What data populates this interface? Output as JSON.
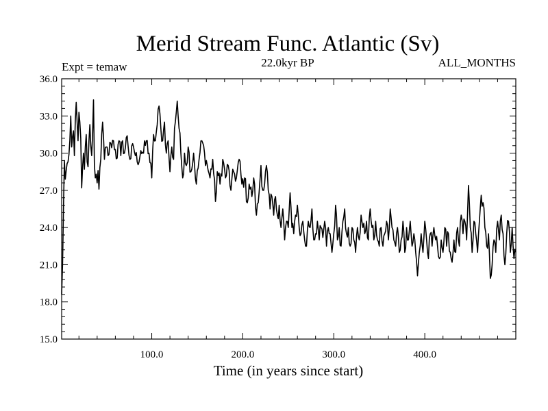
{
  "chart_data": {
    "type": "line",
    "title": "Merid Stream Func. Atlantic (Sv)",
    "subtitle_left": "Expt = temaw",
    "subtitle_center": "22.0kyr BP",
    "subtitle_right": "ALL_MONTHS",
    "xlabel": "Time (in years since start)",
    "ylabel": "",
    "xlim": [
      1,
      500
    ],
    "ylim": [
      15.0,
      36.0
    ],
    "x_ticks": [
      100,
      200,
      300,
      400
    ],
    "x_tick_labels": [
      "100.0",
      "200.0",
      "300.0",
      "400.0"
    ],
    "y_ticks": [
      15,
      18,
      21,
      24,
      27,
      30,
      33,
      36
    ],
    "y_tick_labels": [
      "15.0",
      "18.0",
      "21.0",
      "24.0",
      "27.0",
      "30.0",
      "33.0",
      "36.0"
    ],
    "x_start": 1,
    "x_step": 1,
    "key_points": [
      [
        1,
        18.6
      ],
      [
        2,
        21.0
      ],
      [
        3,
        25.5
      ],
      [
        4,
        29.4
      ],
      [
        5,
        27.9
      ],
      [
        6,
        28.6
      ],
      [
        8,
        29.3
      ],
      [
        10,
        31.0
      ],
      [
        11,
        33.0
      ],
      [
        12,
        30.5
      ],
      [
        14,
        31.8
      ],
      [
        15,
        29.8
      ],
      [
        17,
        34.1
      ],
      [
        18,
        32.5
      ],
      [
        19,
        31.0
      ],
      [
        20,
        33.3
      ],
      [
        22,
        31.2
      ],
      [
        23,
        27.2
      ],
      [
        25,
        30.0
      ],
      [
        26,
        28.7
      ],
      [
        27,
        30.5
      ],
      [
        28,
        31.5
      ],
      [
        29,
        29.3
      ],
      [
        30,
        28.9
      ],
      [
        31,
        31.0
      ],
      [
        32,
        32.3
      ],
      [
        34,
        29.8
      ],
      [
        35,
        31.5
      ],
      [
        36,
        34.3
      ],
      [
        37,
        29.0
      ],
      [
        38,
        28.0
      ],
      [
        39,
        28.3
      ],
      [
        40,
        27.6
      ],
      [
        41,
        28.6
      ],
      [
        42,
        27.1
      ],
      [
        44,
        29.5
      ],
      [
        45,
        31.5
      ],
      [
        46,
        32.5
      ],
      [
        48,
        29.5
      ],
      [
        50,
        30.5
      ],
      [
        52,
        29.8
      ],
      [
        55,
        30.8
      ],
      [
        58,
        31.0
      ],
      [
        60,
        30.3
      ],
      [
        62,
        29.6
      ],
      [
        64,
        31.0
      ],
      [
        66,
        29.8
      ],
      [
        68,
        31.0
      ],
      [
        70,
        30.0
      ],
      [
        73,
        31.4
      ],
      [
        76,
        29.5
      ],
      [
        80,
        30.5
      ],
      [
        84,
        29.3
      ],
      [
        88,
        30.2
      ],
      [
        91,
        30.0
      ],
      [
        94,
        31.0
      ],
      [
        97,
        30.0
      ],
      [
        100,
        28.0
      ],
      [
        102,
        31.5
      ],
      [
        104,
        31.0
      ],
      [
        106,
        32.3
      ],
      [
        108,
        33.8
      ],
      [
        110,
        32.0
      ],
      [
        112,
        31.0
      ],
      [
        114,
        32.5
      ],
      [
        116,
        30.0
      ],
      [
        118,
        31.0
      ],
      [
        120,
        28.5
      ],
      [
        122,
        30.5
      ],
      [
        124,
        29.5
      ],
      [
        125,
        32.0
      ],
      [
        128,
        34.2
      ],
      [
        130,
        32.0
      ],
      [
        132,
        30.0
      ],
      [
        134,
        28.0
      ],
      [
        136,
        30.0
      ],
      [
        138,
        29.0
      ],
      [
        140,
        30.5
      ],
      [
        143,
        28.5
      ],
      [
        146,
        30.0
      ],
      [
        149,
        27.5
      ],
      [
        152,
        29.5
      ],
      [
        155,
        31.0
      ],
      [
        158,
        30.0
      ],
      [
        161,
        29.0
      ],
      [
        164,
        28.0
      ],
      [
        167,
        29.5
      ],
      [
        170,
        26.1
      ],
      [
        172,
        28.5
      ],
      [
        175,
        27.5
      ],
      [
        178,
        29.5
      ],
      [
        181,
        28.0
      ],
      [
        184,
        29.0
      ],
      [
        187,
        27.0
      ],
      [
        190,
        28.5
      ],
      [
        193,
        28.0
      ],
      [
        196,
        29.5
      ],
      [
        199,
        27.5
      ],
      [
        202,
        28.0
      ],
      [
        205,
        26.0
      ],
      [
        207,
        27.5
      ],
      [
        210,
        26.5
      ],
      [
        212,
        28.0
      ],
      [
        215,
        25.0
      ],
      [
        217,
        26.0
      ],
      [
        220,
        29.0
      ],
      [
        222,
        27.0
      ],
      [
        224,
        27.5
      ],
      [
        226,
        29.0
      ],
      [
        228,
        27.0
      ],
      [
        230,
        25.5
      ],
      [
        232,
        26.5
      ],
      [
        234,
        25.0
      ],
      [
        236,
        26.5
      ],
      [
        238,
        25.0
      ],
      [
        240,
        25.8
      ],
      [
        242,
        24.0
      ],
      [
        244,
        25.5
      ],
      [
        246,
        23.0
      ],
      [
        248,
        24.5
      ],
      [
        250,
        24.0
      ],
      [
        252,
        26.8
      ],
      [
        254,
        24.0
      ],
      [
        256,
        23.5
      ],
      [
        258,
        25.0
      ],
      [
        260,
        25.8
      ],
      [
        262,
        24.0
      ],
      [
        264,
        23.5
      ],
      [
        266,
        24.5
      ],
      [
        268,
        23.0
      ],
      [
        270,
        22.5
      ],
      [
        272,
        24.5
      ],
      [
        274,
        24.0
      ],
      [
        276,
        25.5
      ],
      [
        278,
        23.0
      ],
      [
        280,
        23.5
      ],
      [
        282,
        24.5
      ],
      [
        284,
        23.0
      ],
      [
        286,
        24.0
      ],
      [
        288,
        23.2
      ],
      [
        290,
        24.5
      ],
      [
        292,
        22.5
      ],
      [
        294,
        24.0
      ],
      [
        296,
        23.5
      ],
      [
        298,
        22.0
      ],
      [
        300,
        23.5
      ],
      [
        302,
        25.8
      ],
      [
        304,
        23.0
      ],
      [
        306,
        24.0
      ],
      [
        308,
        22.5
      ],
      [
        310,
        24.5
      ],
      [
        312,
        25.5
      ],
      [
        314,
        23.5
      ],
      [
        316,
        24.0
      ],
      [
        318,
        22.5
      ],
      [
        320,
        24.0
      ],
      [
        322,
        23.0
      ],
      [
        324,
        22.0
      ],
      [
        326,
        24.0
      ],
      [
        328,
        23.0
      ],
      [
        330,
        25.0
      ],
      [
        332,
        24.0
      ],
      [
        334,
        23.5
      ],
      [
        336,
        24.5
      ],
      [
        338,
        23.0
      ],
      [
        340,
        25.5
      ],
      [
        342,
        24.0
      ],
      [
        344,
        23.0
      ],
      [
        346,
        24.5
      ],
      [
        348,
        23.0
      ],
      [
        350,
        22.5
      ],
      [
        352,
        24.0
      ],
      [
        354,
        22.5
      ],
      [
        356,
        23.5
      ],
      [
        358,
        24.5
      ],
      [
        360,
        23.0
      ],
      [
        362,
        25.5
      ],
      [
        364,
        24.0
      ],
      [
        366,
        23.0
      ],
      [
        368,
        22.5
      ],
      [
        370,
        24.0
      ],
      [
        372,
        22.0
      ],
      [
        374,
        23.0
      ],
      [
        376,
        24.5
      ],
      [
        378,
        22.0
      ],
      [
        380,
        24.0
      ],
      [
        382,
        23.0
      ],
      [
        384,
        24.5
      ],
      [
        386,
        22.5
      ],
      [
        388,
        23.5
      ],
      [
        390,
        22.0
      ],
      [
        392,
        20.1
      ],
      [
        394,
        22.0
      ],
      [
        396,
        23.5
      ],
      [
        398,
        22.0
      ],
      [
        400,
        24.5
      ],
      [
        402,
        23.0
      ],
      [
        404,
        21.5
      ],
      [
        406,
        23.5
      ],
      [
        408,
        22.5
      ],
      [
        410,
        24.0
      ],
      [
        412,
        23.0
      ],
      [
        414,
        22.5
      ],
      [
        416,
        21.5
      ],
      [
        418,
        23.0
      ],
      [
        420,
        22.0
      ],
      [
        422,
        24.0
      ],
      [
        424,
        22.5
      ],
      [
        426,
        23.5
      ],
      [
        428,
        22.0
      ],
      [
        430,
        21.2
      ],
      [
        432,
        23.0
      ],
      [
        434,
        22.0
      ],
      [
        436,
        24.0
      ],
      [
        438,
        22.5
      ],
      [
        440,
        25.0
      ],
      [
        442,
        23.5
      ],
      [
        444,
        24.5
      ],
      [
        446,
        23.0
      ],
      [
        448,
        27.4
      ],
      [
        450,
        24.0
      ],
      [
        452,
        22.0
      ],
      [
        454,
        24.5
      ],
      [
        456,
        23.5
      ],
      [
        458,
        22.0
      ],
      [
        460,
        24.5
      ],
      [
        462,
        26.6
      ],
      [
        464,
        26.0
      ],
      [
        466,
        24.0
      ],
      [
        468,
        22.5
      ],
      [
        470,
        23.5
      ],
      [
        472,
        19.9
      ],
      [
        474,
        21.0
      ],
      [
        476,
        23.0
      ],
      [
        478,
        22.0
      ],
      [
        480,
        24.5
      ],
      [
        482,
        23.0
      ],
      [
        484,
        25.0
      ],
      [
        486,
        23.5
      ],
      [
        488,
        21.0
      ],
      [
        490,
        23.5
      ],
      [
        492,
        24.5
      ],
      [
        494,
        22.0
      ],
      [
        496,
        24.0
      ],
      [
        498,
        21.5
      ],
      [
        500,
        22.0
      ]
    ]
  }
}
